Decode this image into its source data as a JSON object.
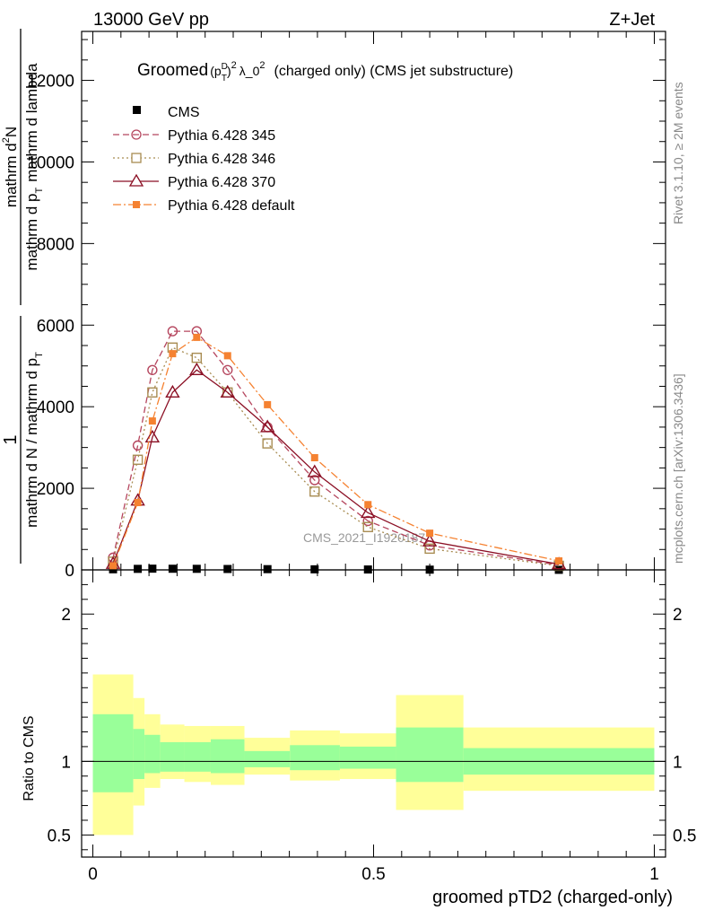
{
  "header": {
    "left": "13000 GeV pp",
    "right": "Z+Jet"
  },
  "side_labels": {
    "rivet": "Rivet 3.1.10, ≥ 2M events",
    "mcplots": "mcplots.cern.ch [arXiv:1306.3436]"
  },
  "watermark": "CMS_2021_I1920187",
  "chart_data": [
    {
      "type": "line",
      "title": {
        "groomed": "Groomed",
        "pt": "(p",
        "pt_sup": "D",
        "pt_sub": "T",
        "pt_close": ")",
        "exp1": "2",
        "lambda": "λ_0",
        "exp2": "2",
        "rest": "(charged only) (CMS jet substructure)"
      },
      "ylabel": {
        "numerator_one": "1",
        "denominator_one": "mathrm d N / mathrm d p",
        "denominator_one_sub": "T",
        "numerator_two": "mathrm d",
        "numerator_two_sup": "2",
        "numerator_two_end": "N",
        "denominator_two": "mathrm d p",
        "denominator_two_sub": "T",
        "denominator_two_end": "mathrm d lambda"
      },
      "xlabel": "",
      "xlim": [
        -0.02,
        1.02
      ],
      "ylim": [
        0,
        13200
      ],
      "y_ticks": [
        {
          "value": 0,
          "label": "0"
        },
        {
          "value": 2000,
          "label": "2000"
        },
        {
          "value": 4000,
          "label": "4000"
        },
        {
          "value": 6000,
          "label": "6000"
        },
        {
          "value": 8000,
          "label": "8000"
        },
        {
          "value": 10000,
          "label": "10000"
        },
        {
          "value": 12000,
          "label": "12000"
        }
      ],
      "x": [
        0.036,
        0.08,
        0.106,
        0.142,
        0.185,
        0.24,
        0.311,
        0.395,
        0.49,
        0.6,
        0.83
      ],
      "series": [
        {
          "name": "CMS",
          "color": "#000000",
          "marker": "filled-square",
          "dash": "none",
          "values": [
            15,
            25,
            30,
            28,
            26,
            22,
            18,
            14,
            10,
            6,
            2
          ]
        },
        {
          "name": "Pythia 6.428 345",
          "color": "#b5465e",
          "marker": "open-circle",
          "dash": "7,4",
          "values": [
            300,
            3050,
            4900,
            5850,
            5850,
            4900,
            3500,
            2200,
            1200,
            600,
            120
          ]
        },
        {
          "name": "Pythia 6.428 346",
          "color": "#a88c52",
          "marker": "open-square",
          "dash": "2,3",
          "values": [
            200,
            2700,
            4350,
            5450,
            5200,
            4350,
            3100,
            1920,
            1050,
            520,
            100
          ]
        },
        {
          "name": "Pythia 6.428 370",
          "color": "#8b0f24",
          "marker": "open-triangle",
          "dash": "none",
          "values": [
            150,
            1700,
            3250,
            4350,
            4900,
            4350,
            3500,
            2400,
            1400,
            700,
            140
          ]
        },
        {
          "name": "Pythia 6.428 default",
          "color": "#f58231",
          "marker": "filled-square",
          "dash": "9,3,2,3",
          "values": [
            100,
            1650,
            3650,
            5300,
            5700,
            5250,
            4050,
            2750,
            1600,
            900,
            220
          ]
        }
      ],
      "legend_position": "top-left"
    },
    {
      "type": "area",
      "ylabel": "Ratio to CMS",
      "xlabel": "groomed pTD2 (charged-only)",
      "xlim": [
        -0.02,
        1.02
      ],
      "ylim": [
        0.35,
        2.3
      ],
      "x_ticks": [
        {
          "value": 0,
          "label": "0"
        },
        {
          "value": 0.5,
          "label": "0.5"
        },
        {
          "value": 1,
          "label": "1"
        }
      ],
      "y_ticks": [
        {
          "value": 0.5,
          "label": "0.5"
        },
        {
          "value": 1,
          "label": "1"
        },
        {
          "value": 2,
          "label": "2"
        }
      ],
      "reference_line": 1,
      "bins": [
        {
          "x0": 0.0,
          "x1": 0.072,
          "in_lo": 0.79,
          "in_hi": 1.32,
          "out_lo": 0.5,
          "out_hi": 1.59
        },
        {
          "x0": 0.072,
          "x1": 0.092,
          "in_lo": 0.88,
          "in_hi": 1.22,
          "out_lo": 0.7,
          "out_hi": 1.43
        },
        {
          "x0": 0.092,
          "x1": 0.12,
          "in_lo": 0.92,
          "in_hi": 1.18,
          "out_lo": 0.82,
          "out_hi": 1.32
        },
        {
          "x0": 0.12,
          "x1": 0.163,
          "in_lo": 0.93,
          "in_hi": 1.13,
          "out_lo": 0.88,
          "out_hi": 1.25
        },
        {
          "x0": 0.163,
          "x1": 0.21,
          "in_lo": 0.93,
          "in_hi": 1.13,
          "out_lo": 0.86,
          "out_hi": 1.24
        },
        {
          "x0": 0.21,
          "x1": 0.27,
          "in_lo": 0.92,
          "in_hi": 1.15,
          "out_lo": 0.84,
          "out_hi": 1.24
        },
        {
          "x0": 0.27,
          "x1": 0.351,
          "in_lo": 0.96,
          "in_hi": 1.07,
          "out_lo": 0.91,
          "out_hi": 1.16
        },
        {
          "x0": 0.351,
          "x1": 0.44,
          "in_lo": 0.94,
          "in_hi": 1.11,
          "out_lo": 0.87,
          "out_hi": 1.21
        },
        {
          "x0": 0.44,
          "x1": 0.54,
          "in_lo": 0.95,
          "in_hi": 1.1,
          "out_lo": 0.88,
          "out_hi": 1.19
        },
        {
          "x0": 0.54,
          "x1": 0.66,
          "in_lo": 0.86,
          "in_hi": 1.23,
          "out_lo": 0.67,
          "out_hi": 1.45
        },
        {
          "x0": 0.66,
          "x1": 1.0,
          "in_lo": 0.91,
          "in_hi": 1.09,
          "out_lo": 0.8,
          "out_hi": 1.23
        }
      ],
      "band_colors": {
        "inner": "#99ff99",
        "outer": "#ffff99"
      },
      "grid": false
    }
  ]
}
